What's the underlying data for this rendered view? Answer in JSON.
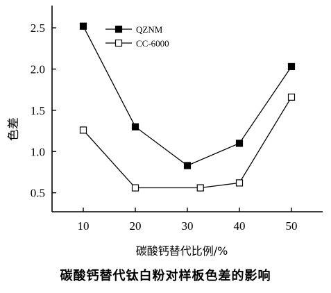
{
  "chart_data": {
    "type": "line",
    "title": "碳酸钙替代钛白粉对样板色差的影响",
    "xlabel": "碳酸钙替代比例/%",
    "ylabel": "色差",
    "xlim": [
      4,
      56
    ],
    "ylim": [
      0.27,
      2.77
    ],
    "xticks": [
      10,
      20,
      30,
      40,
      50
    ],
    "yticks": [
      0.5,
      1.0,
      1.5,
      2.0,
      2.5
    ],
    "xtick_labels": [
      "10",
      "20",
      "30",
      "40",
      "50"
    ],
    "ytick_labels": [
      "0.5",
      "1.0",
      "1.5",
      "2.0",
      "2.5"
    ],
    "legend_position": "top-left",
    "series": [
      {
        "name": "QZNM",
        "marker": "filled-square",
        "x": [
          10,
          20,
          30,
          40,
          50
        ],
        "values": [
          2.52,
          1.3,
          0.83,
          1.1,
          2.03
        ]
      },
      {
        "name": "CC-6000",
        "marker": "open-square",
        "x": [
          10,
          20,
          32.5,
          40,
          50
        ],
        "values": [
          1.26,
          0.56,
          0.56,
          0.62,
          1.66
        ]
      }
    ]
  }
}
